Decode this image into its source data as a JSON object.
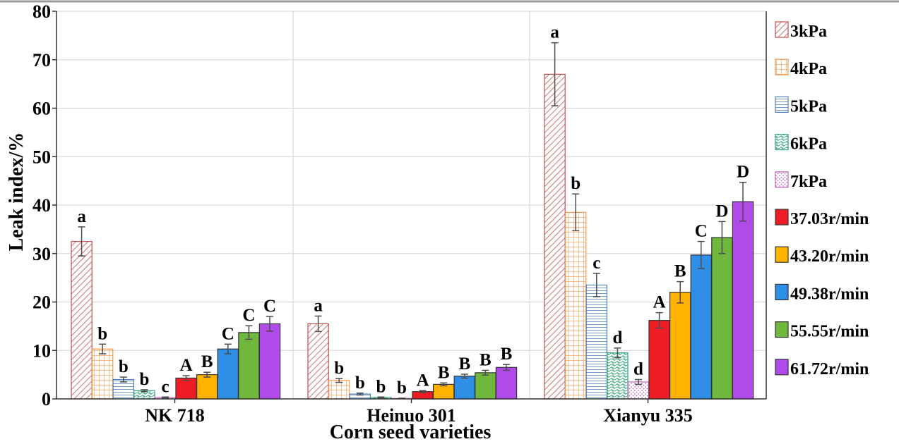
{
  "chart_data": {
    "type": "bar",
    "xlabel": "Corn seed varieties",
    "ylabel": "Leak index/%",
    "ylim": [
      0,
      80
    ],
    "yticks": [
      0,
      10,
      20,
      30,
      40,
      50,
      60,
      70,
      80
    ],
    "grid": true,
    "legend_position": "right",
    "categories": [
      "NK 718",
      "Heinuo 301",
      "Xianyu 335"
    ],
    "series": [
      {
        "name": "3kPa",
        "values": [
          32.5,
          15.5,
          67.0
        ],
        "errors": [
          3.0,
          1.6,
          6.5
        ],
        "labels": [
          "a",
          "a",
          "a"
        ],
        "color": "#c0504d",
        "fill": "diag"
      },
      {
        "name": "4kPa",
        "values": [
          10.3,
          3.8,
          38.5
        ],
        "errors": [
          1.0,
          0.4,
          3.8
        ],
        "labels": [
          "b",
          "b",
          "b"
        ],
        "color": "#f79646",
        "fill": "grid"
      },
      {
        "name": "5kPa",
        "values": [
          4.0,
          1.0,
          23.5
        ],
        "errors": [
          0.5,
          0.2,
          2.4
        ],
        "labels": [
          "b",
          "b",
          "c"
        ],
        "color": "#4f81bd",
        "fill": "hlines"
      },
      {
        "name": "6kPa",
        "values": [
          1.7,
          0.3,
          9.5
        ],
        "errors": [
          0.2,
          0.1,
          1.0
        ],
        "labels": [
          "b",
          "b",
          "d"
        ],
        "color": "#3aa67a",
        "fill": "wave"
      },
      {
        "name": "7kPa",
        "values": [
          0.3,
          0.1,
          3.5
        ],
        "errors": [
          0.1,
          0.05,
          0.5
        ],
        "labels": [
          "c",
          "b",
          "d"
        ],
        "color": "#c060c0",
        "fill": "dots"
      },
      {
        "name": "37.03r/min",
        "values": [
          4.3,
          1.5,
          16.2
        ],
        "errors": [
          0.5,
          0.2,
          1.6
        ],
        "labels": [
          "A",
          "A",
          "A"
        ],
        "color": "#ee1c25",
        "fill": "solid"
      },
      {
        "name": "43.20r/min",
        "values": [
          5.0,
          3.0,
          22.0
        ],
        "errors": [
          0.5,
          0.3,
          2.2
        ],
        "labels": [
          "B",
          "B",
          "B"
        ],
        "color": "#ffb300",
        "fill": "solid"
      },
      {
        "name": "49.38r/min",
        "values": [
          10.3,
          4.7,
          29.7
        ],
        "errors": [
          1.0,
          0.4,
          2.8
        ],
        "labels": [
          "C",
          "B",
          "C"
        ],
        "color": "#2f8ee6",
        "fill": "solid"
      },
      {
        "name": "55.55r/min",
        "values": [
          13.7,
          5.4,
          33.3
        ],
        "errors": [
          1.4,
          0.5,
          3.3
        ],
        "labels": [
          "C",
          "B",
          "D"
        ],
        "color": "#70b83d",
        "fill": "solid"
      },
      {
        "name": "61.72r/min",
        "values": [
          15.5,
          6.5,
          40.7
        ],
        "errors": [
          1.5,
          0.6,
          4.0
        ],
        "labels": [
          "C",
          "B",
          "D"
        ],
        "color": "#b04ae8",
        "fill": "solid"
      }
    ]
  }
}
